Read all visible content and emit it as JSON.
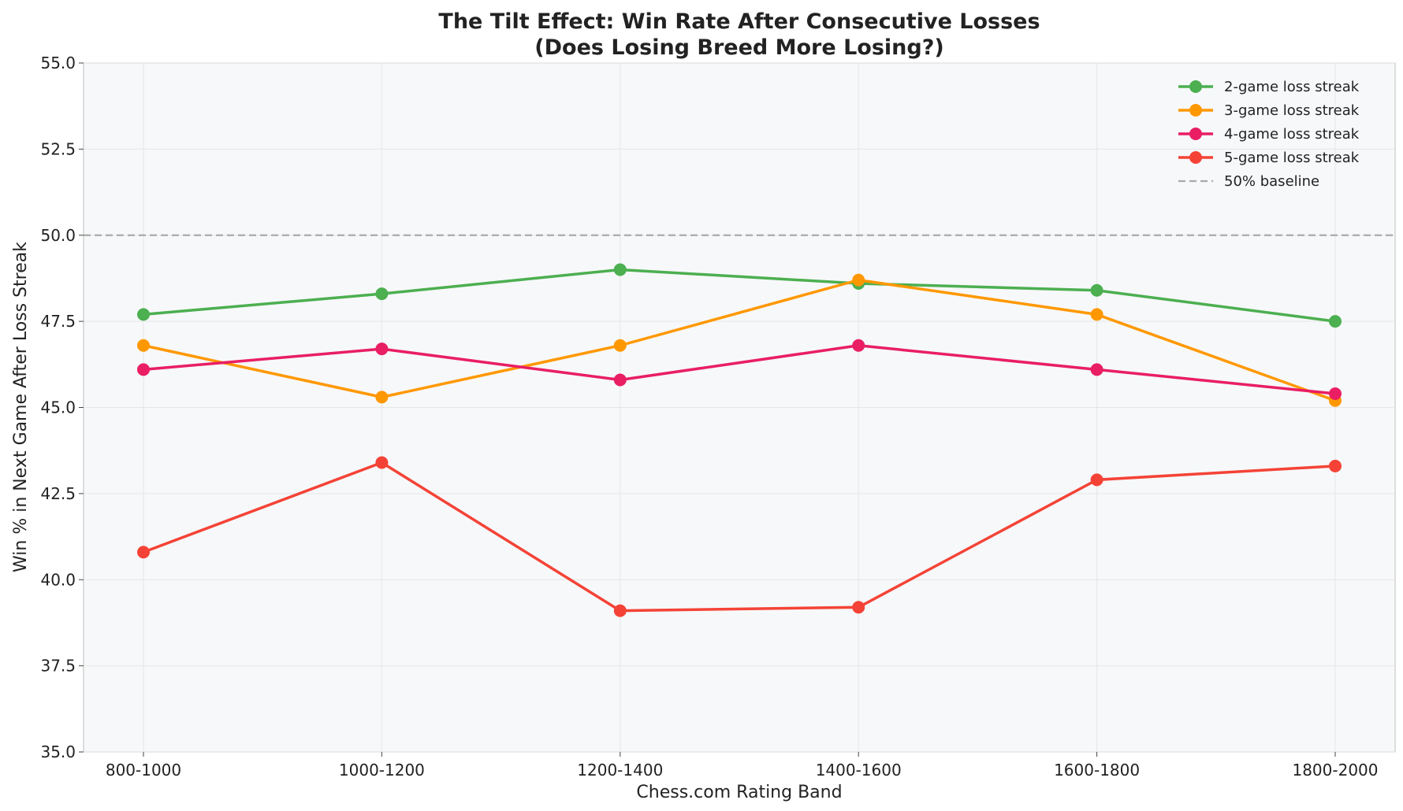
{
  "chart_data": {
    "type": "line",
    "title": "The Tilt Effect: Win Rate After Consecutive Losses",
    "subtitle": "(Does Losing Breed More Losing?)",
    "xlabel": "Chess.com Rating Band",
    "ylabel": "Win % in Next Game After Loss Streak",
    "categories": [
      "800-1000",
      "1000-1200",
      "1200-1400",
      "1400-1600",
      "1600-1800",
      "1800-2000"
    ],
    "ylim": [
      35.0,
      55.0
    ],
    "yticks": [
      "35.0",
      "37.5",
      "40.0",
      "42.5",
      "45.0",
      "47.5",
      "50.0",
      "52.5",
      "55.0"
    ],
    "grid": true,
    "legend_position": "top-right",
    "series": [
      {
        "name": "2-game loss streak",
        "color": "#4caf50",
        "values": [
          47.7,
          48.3,
          49.0,
          48.6,
          48.4,
          47.5
        ]
      },
      {
        "name": "3-game loss streak",
        "color": "#ff9800",
        "values": [
          46.8,
          45.3,
          46.8,
          48.7,
          47.7,
          45.2
        ]
      },
      {
        "name": "4-game loss streak",
        "color": "#e91e63",
        "values": [
          46.1,
          46.7,
          45.8,
          46.8,
          46.1,
          45.4
        ]
      },
      {
        "name": "5-game loss streak",
        "color": "#f44336",
        "values": [
          40.8,
          43.4,
          39.1,
          39.2,
          42.9,
          43.3
        ]
      }
    ],
    "baseline": {
      "name": "50% baseline",
      "value": 50.0,
      "color": "#aaaaaa"
    },
    "plot_background": "#f7f8fa"
  }
}
